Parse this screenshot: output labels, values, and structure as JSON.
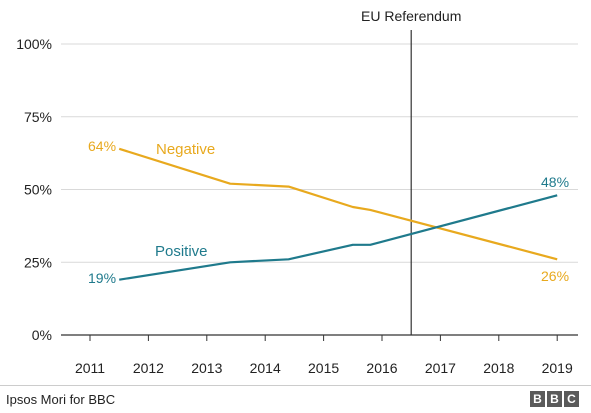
{
  "chart_data": {
    "type": "line",
    "x": [
      2011.5,
      2013.4,
      2014.4,
      2015.5,
      2015.8,
      2019
    ],
    "xticks": [
      "2011",
      "2012",
      "2013",
      "2014",
      "2015",
      "2016",
      "2017",
      "2018",
      "2019"
    ],
    "yticks": [
      "0%",
      "25%",
      "50%",
      "75%",
      "100%"
    ],
    "ylim": [
      0,
      100
    ],
    "series": [
      {
        "name": "Negative",
        "color": "#e8a91e",
        "x": [
          2011.5,
          2013.4,
          2014.4,
          2015.5,
          2015.8,
          2019
        ],
        "values": [
          64,
          52,
          51,
          44,
          43,
          26
        ]
      },
      {
        "name": "Positive",
        "color": "#1f7a8c",
        "x": [
          2011.5,
          2013.4,
          2014.4,
          2015.5,
          2015.8,
          2019
        ],
        "values": [
          19,
          25,
          26,
          31,
          31,
          48
        ]
      }
    ],
    "data_labels": {
      "negative_start": "64%",
      "negative_end": "26%",
      "positive_start": "19%",
      "positive_end": "48%"
    },
    "annotation": {
      "label": "EU Referendum",
      "x": 2016.5
    },
    "grid": true
  },
  "footer": {
    "source": "Ipsos Mori for BBC",
    "logo_letters": [
      "B",
      "B",
      "C"
    ]
  }
}
